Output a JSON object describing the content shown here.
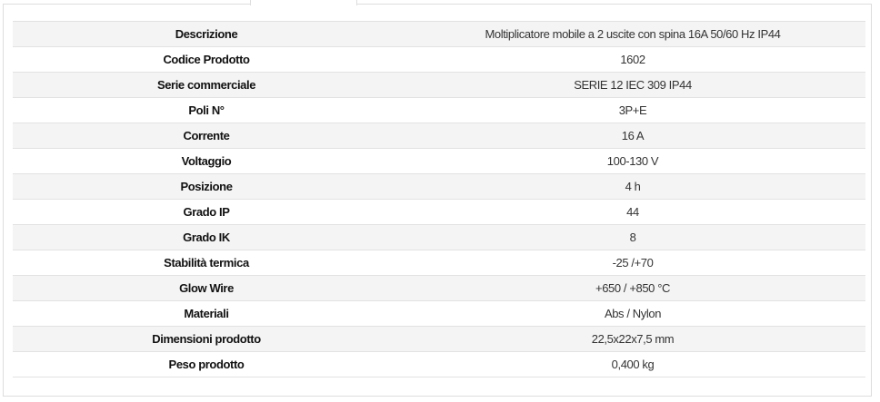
{
  "specs": [
    {
      "label": "Descrizione",
      "value": "Moltiplicatore mobile a 2 uscite con spina 16A 50/60 Hz IP44"
    },
    {
      "label": "Codice Prodotto",
      "value": "1602"
    },
    {
      "label": "Serie commerciale",
      "value": "SERIE 12 IEC 309 IP44"
    },
    {
      "label": "Poli N°",
      "value": "3P+E"
    },
    {
      "label": "Corrente",
      "value": "16 A"
    },
    {
      "label": "Voltaggio",
      "value": "100-130 V"
    },
    {
      "label": "Posizione",
      "value": "4 h"
    },
    {
      "label": "Grado IP",
      "value": "44"
    },
    {
      "label": "Grado IK",
      "value": "8"
    },
    {
      "label": "Stabilità termica",
      "value": "-25 /+70"
    },
    {
      "label": "Glow Wire",
      "value": "+650 / +850 °C"
    },
    {
      "label": "Materiali",
      "value": "Abs / Nylon"
    },
    {
      "label": "Dimensioni prodotto",
      "value": "22,5x22x7,5 mm"
    },
    {
      "label": "Peso prodotto",
      "value": "0,400 kg"
    }
  ]
}
